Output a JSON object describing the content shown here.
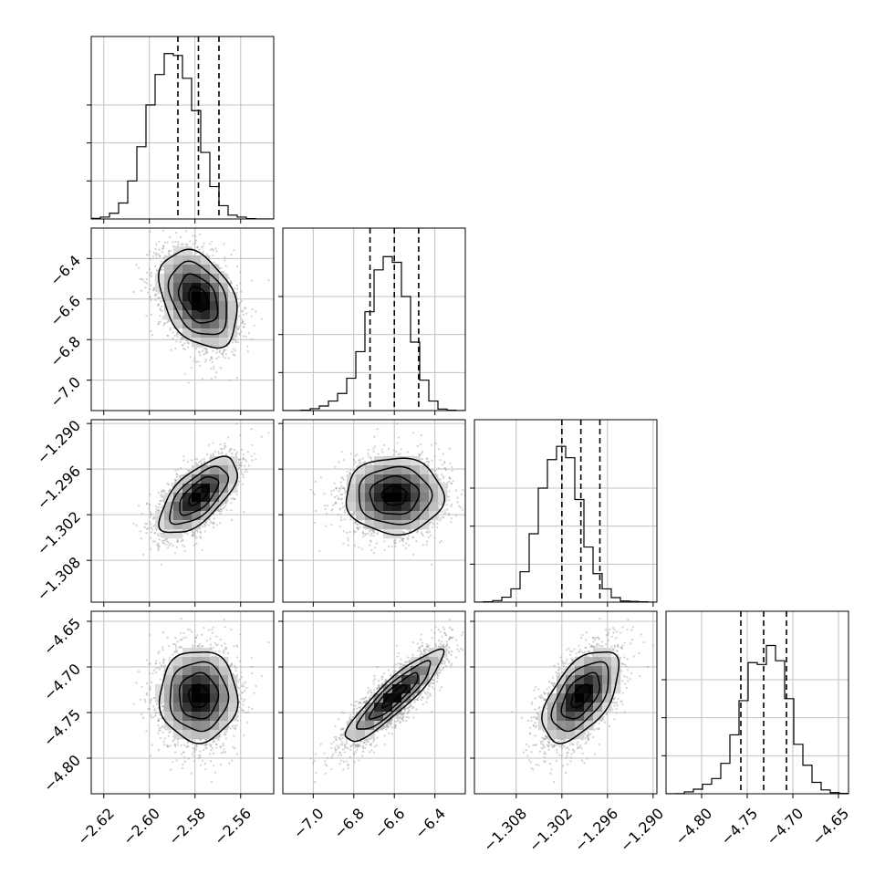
{
  "chart_data": {
    "type": "corner",
    "colors": {
      "axes": "#000000",
      "grid": "#c0c0c0",
      "points": "#9a9a9a",
      "hist": "#000000",
      "quantile": "#000000"
    },
    "grid": true,
    "quantiles": [
      0.16,
      0.5,
      0.84
    ],
    "params": [
      {
        "min": -2.6255,
        "max": -2.5455,
        "mean": -2.5785,
        "sd": 0.0085,
        "quantiles": [
          -2.5875,
          -2.5785,
          -2.5695
        ],
        "ticks": [
          -2.62,
          -2.6,
          -2.58,
          -2.56
        ],
        "tick_labels": [
          "−2.62",
          "−2.60",
          "−2.58",
          "−2.56"
        ]
      },
      {
        "min": -7.15,
        "max": -6.25,
        "mean": -6.6,
        "sd": 0.12,
        "quantiles": [
          -6.72,
          -6.6,
          -6.48
        ],
        "ticks": [
          -7.0,
          -6.8,
          -6.6,
          -6.4
        ],
        "tick_labels": [
          "−7.0",
          "−6.8",
          "−6.6",
          "−6.4"
        ]
      },
      {
        "min": -1.3135,
        "max": -1.2895,
        "mean": -1.2995,
        "sd": 0.0025,
        "quantiles": [
          -1.302,
          -1.2995,
          -1.297
        ],
        "ticks": [
          -1.308,
          -1.302,
          -1.296,
          -1.29
        ],
        "tick_labels": [
          "−1.308",
          "−1.302",
          "−1.296",
          "−1.290"
        ]
      },
      {
        "min": -4.839,
        "max": -4.639,
        "mean": -4.732,
        "sd": 0.025,
        "quantiles": [
          -4.757,
          -4.732,
          -4.707
        ],
        "ticks": [
          -4.8,
          -4.75,
          -4.7,
          -4.65
        ],
        "tick_labels": [
          "−4.80",
          "−4.75",
          "−4.70",
          "−4.65"
        ]
      }
    ],
    "correlations": [
      [
        1.0,
        -0.35,
        0.65,
        0.0
      ],
      [
        -0.35,
        1.0,
        0.0,
        0.9
      ],
      [
        0.65,
        0.0,
        1.0,
        0.55
      ],
      [
        0.0,
        0.9,
        0.55,
        1.0
      ]
    ],
    "hist_peaks": [
      [
        0.15,
        0.5,
        1.5,
        4.2,
        10,
        19,
        30,
        38,
        43.5,
        43,
        37,
        28.5,
        17.5,
        8.5,
        3.5,
        1,
        0.5,
        0.1,
        0,
        0
      ],
      [
        0,
        0,
        0.1,
        0.5,
        1.2,
        2.5,
        4.5,
        8.5,
        15.5,
        26,
        37,
        40.5,
        39,
        30,
        18,
        8,
        2.5,
        0.4,
        0.1,
        0
      ],
      [
        0,
        0.1,
        0.4,
        1.3,
        3.5,
        8,
        18,
        30,
        37.5,
        41,
        38,
        27,
        14.5,
        7.5,
        3.5,
        1.2,
        0.3,
        0.2,
        0.1,
        0
      ],
      [
        0,
        0.05,
        0.5,
        1.2,
        2.5,
        4,
        8,
        15.5,
        24.5,
        34.5,
        34,
        39,
        35,
        25,
        13,
        7.5,
        3,
        1,
        0.3,
        0.1
      ]
    ],
    "hist_ylim": 48
  }
}
